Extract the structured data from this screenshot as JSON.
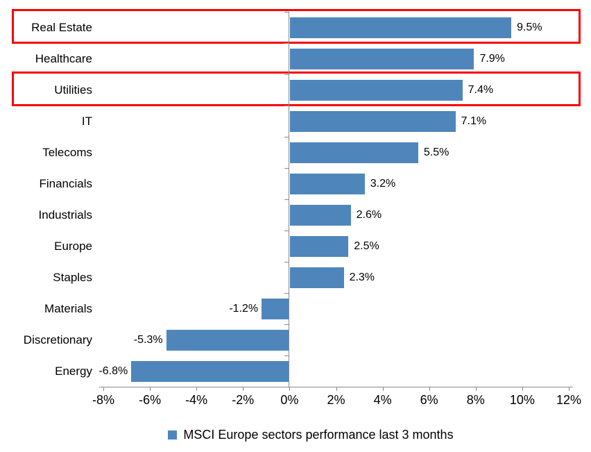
{
  "chart_data": {
    "type": "bar",
    "orientation": "horizontal",
    "series": [
      {
        "name": "MSCI Europe sectors performance last 3 months",
        "values": [
          9.5,
          7.9,
          7.4,
          7.1,
          5.5,
          3.2,
          2.6,
          2.5,
          2.3,
          -1.2,
          -5.3,
          -6.8
        ]
      }
    ],
    "categories": [
      "Real Estate",
      "Healthcare",
      "Utilities",
      "IT",
      "Telecoms",
      "Financials",
      "Industrials",
      "Europe",
      "Staples",
      "Materials",
      "Discretionary",
      "Energy"
    ],
    "value_labels": [
      "9.5%",
      "7.9%",
      "7.4%",
      "7.1%",
      "5.5%",
      "3.2%",
      "2.6%",
      "2.5%",
      "2.3%",
      "-1.2%",
      "-5.3%",
      "-6.8%"
    ],
    "title": "",
    "xlabel": "",
    "ylabel": "",
    "xlim": [
      -8,
      12
    ],
    "x_ticks": [
      -8,
      -6,
      -4,
      -2,
      0,
      2,
      4,
      6,
      8,
      10,
      12
    ],
    "x_tick_labels": [
      "-8%",
      "-6%",
      "-4%",
      "-2%",
      "0%",
      "2%",
      "4%",
      "6%",
      "8%",
      "10%",
      "12%"
    ],
    "grid": false,
    "legend_position": "bottom",
    "legend_label": "MSCI Europe sectors performance last 3 months",
    "highlighted_categories": [
      "Real Estate",
      "Utilities"
    ],
    "colors": {
      "bar": "#4E86BC",
      "axis": "#8A8A8A",
      "text": "#000000",
      "highlight": "#F80000",
      "background": "#FFFFFF"
    }
  }
}
